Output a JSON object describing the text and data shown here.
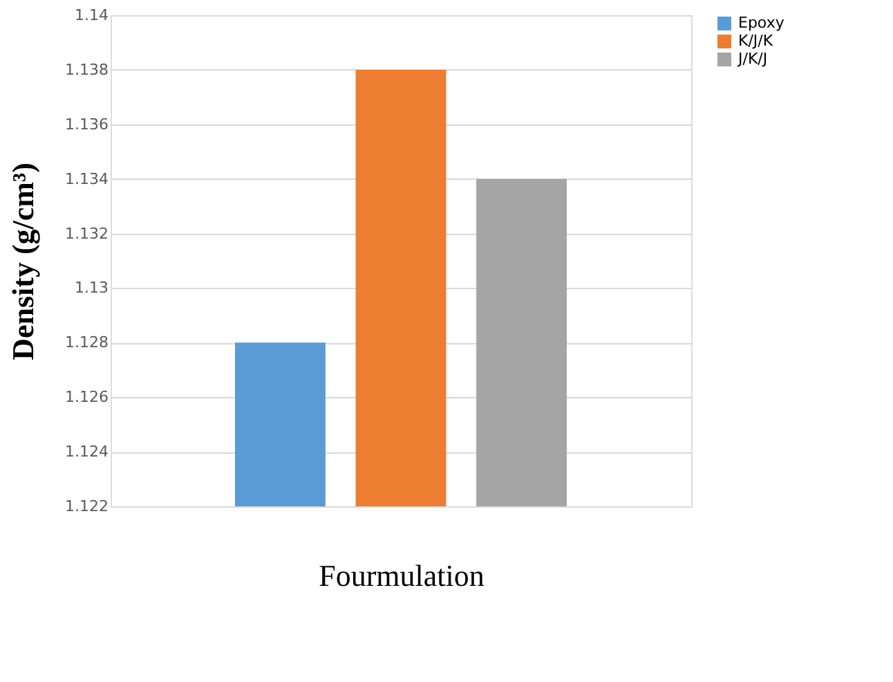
{
  "chart_data": {
    "type": "bar",
    "categories": [
      null
    ],
    "series": [
      {
        "name": "Epoxy",
        "color": "#5b9bd5",
        "values": [
          1.128
        ]
      },
      {
        "name": "K/J/K",
        "color": "#ed7d31",
        "values": [
          1.138
        ]
      },
      {
        "name": "J/K/J",
        "color": "#a5a5a5",
        "values": [
          1.134
        ]
      }
    ],
    "xlabel": "Fourmulation",
    "ylabel": "Density  (g/cm³)",
    "ylim": [
      1.122,
      1.14
    ],
    "yticks": [
      1.122,
      1.124,
      1.126,
      1.128,
      1.13,
      1.132,
      1.134,
      1.136,
      1.138,
      1.14
    ],
    "grid": "y",
    "legend": "right"
  }
}
